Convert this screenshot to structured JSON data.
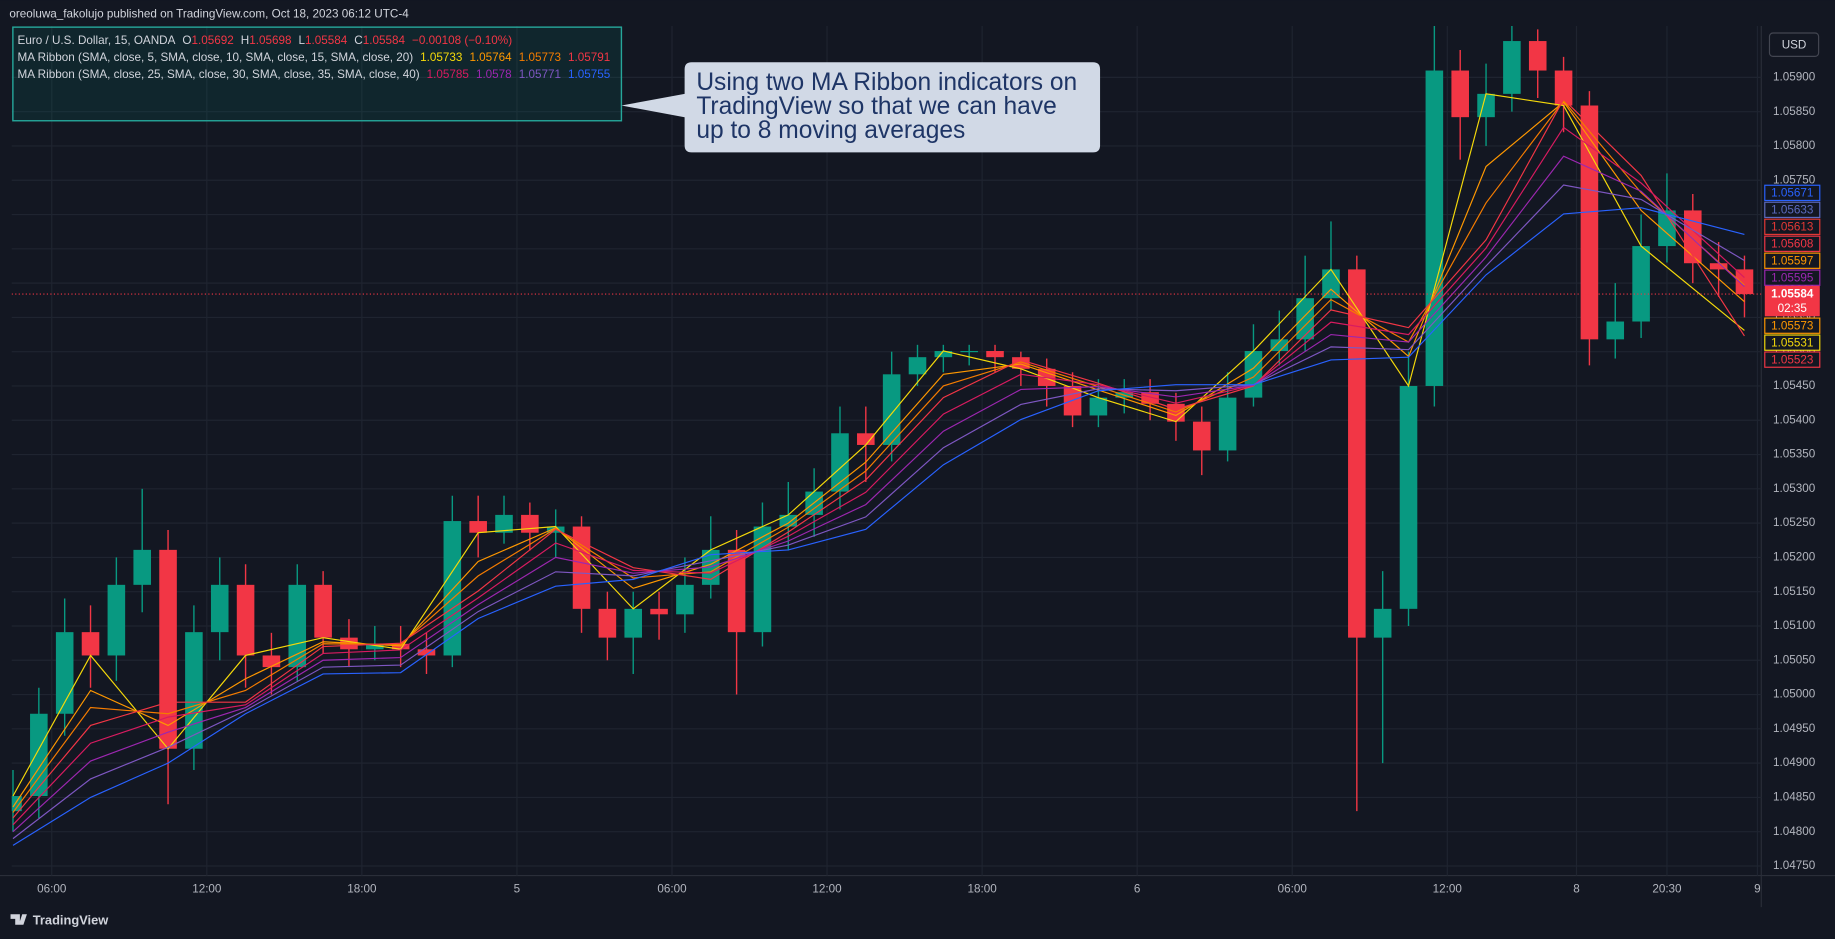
{
  "header": "oreoluwa_fakolujo published on TradingView.com, Oct 18, 2023 06:12 UTC-4",
  "footer": "TradingView",
  "chart_data": {
    "type": "candlestick",
    "symbol": "Euro / U.S. Dollar, 15, OANDA",
    "ohlc_legend": [
      {
        "label": "O",
        "value": 1.05692
      },
      {
        "label": "H",
        "value": 1.05698
      },
      {
        "label": "L",
        "value": 1.05584
      },
      {
        "label": "C",
        "value": 1.05584
      }
    ],
    "change": "−0.00108 (−0.10%)",
    "currency": "USD",
    "up_color": "#089981",
    "down_color": "#f23645",
    "x": [
      0,
      4,
      8,
      12,
      16,
      20,
      24,
      28,
      32,
      36,
      40,
      44,
      48,
      52,
      56,
      60,
      64,
      68,
      72,
      76,
      80,
      84,
      88,
      92,
      96,
      100,
      104,
      108,
      112,
      116,
      120,
      124,
      128,
      132,
      136,
      140,
      144,
      148,
      152,
      156,
      160,
      164,
      168,
      172,
      176,
      180,
      184,
      188,
      192,
      196,
      200,
      204,
      208,
      212,
      216,
      220,
      224,
      228,
      232,
      236,
      240,
      244,
      248,
      252,
      256,
      260,
      264,
      268
    ],
    "open": [
      1.0483,
      1.04852,
      1.04972,
      1.05091,
      1.05057,
      1.0516,
      1.05211,
      1.04921,
      1.05091,
      1.0516,
      1.05057,
      1.0504,
      1.0516,
      1.05083,
      1.05066,
      1.05074,
      1.05066,
      1.05057,
      1.05253,
      1.05236,
      1.05262,
      1.05236,
      1.05245,
      1.05125,
      1.05083,
      1.05125,
      1.05117,
      1.0516,
      1.05211,
      1.05091,
      1.05245,
      1.05262,
      1.05296,
      1.05381,
      1.05364,
      1.05467,
      1.05492,
      1.05501,
      1.05501,
      1.05492,
      1.05475,
      1.0545,
      1.05407,
      1.05433,
      1.05441,
      1.05424,
      1.05398,
      1.05356,
      1.05433,
      1.05501,
      1.05518,
      1.05578,
      1.0562,
      1.05083,
      1.05125,
      1.0545,
      1.0591,
      1.05842,
      1.05876,
      1.05953,
      1.0591,
      1.05859,
      1.05518,
      1.05544,
      1.05654,
      1.05706,
      1.05629,
      1.0562
    ],
    "high": [
      1.0489,
      1.0501,
      1.0514,
      1.0513,
      1.052,
      1.053,
      1.0524,
      1.0513,
      1.052,
      1.0519,
      1.0509,
      1.0519,
      1.0518,
      1.0511,
      1.051,
      1.051,
      1.0509,
      1.0529,
      1.0529,
      1.0529,
      1.0528,
      1.0527,
      1.0526,
      1.0515,
      1.0515,
      1.0515,
      1.052,
      1.0526,
      1.0524,
      1.0528,
      1.0531,
      1.0533,
      1.0542,
      1.0542,
      1.055,
      1.0551,
      1.0551,
      1.0551,
      1.0551,
      1.055,
      1.0549,
      1.0547,
      1.0546,
      1.0546,
      1.0546,
      1.0544,
      1.0542,
      1.0547,
      1.0554,
      1.0556,
      1.0564,
      1.0569,
      1.0564,
      1.0518,
      1.055,
      1.05975,
      1.0594,
      1.0592,
      1.05975,
      1.0597,
      1.0593,
      1.0588,
      1.056,
      1.057,
      1.0576,
      1.0573,
      1.0566,
      1.0564
    ],
    "low": [
      1.048,
      1.0482,
      1.0494,
      1.0501,
      1.0502,
      1.0512,
      1.0484,
      1.0489,
      1.0505,
      1.0501,
      1.05,
      1.0502,
      1.0506,
      1.0504,
      1.0505,
      1.0504,
      1.0503,
      1.0504,
      1.052,
      1.0522,
      1.0521,
      1.052,
      1.0509,
      1.0505,
      1.0503,
      1.0508,
      1.0509,
      1.0514,
      1.05,
      1.0507,
      1.0521,
      1.0523,
      1.0527,
      1.0531,
      1.0534,
      1.0545,
      1.0547,
      1.0548,
      1.0547,
      1.0545,
      1.0542,
      1.0539,
      1.0539,
      1.0541,
      1.054,
      1.0537,
      1.0532,
      1.0534,
      1.0542,
      1.0548,
      1.055,
      1.0556,
      1.0483,
      1.049,
      1.051,
      1.0542,
      1.0578,
      1.058,
      1.0585,
      1.0587,
      1.0582,
      1.0548,
      1.0549,
      1.0552,
      1.0563,
      1.056,
      1.0558,
      1.0555
    ],
    "close": [
      1.04852,
      1.04972,
      1.05091,
      1.05057,
      1.0516,
      1.05211,
      1.04921,
      1.05091,
      1.0516,
      1.05057,
      1.0504,
      1.0516,
      1.05083,
      1.05066,
      1.05074,
      1.05066,
      1.05057,
      1.05253,
      1.05236,
      1.05262,
      1.05236,
      1.05245,
      1.05125,
      1.05083,
      1.05125,
      1.05117,
      1.0516,
      1.05211,
      1.05091,
      1.05245,
      1.05262,
      1.05296,
      1.05381,
      1.05364,
      1.05467,
      1.05492,
      1.05501,
      1.05501,
      1.05492,
      1.05475,
      1.0545,
      1.05407,
      1.05433,
      1.05441,
      1.05424,
      1.05398,
      1.05356,
      1.05433,
      1.05501,
      1.05518,
      1.05578,
      1.0562,
      1.05083,
      1.05125,
      1.0545,
      1.0591,
      1.05842,
      1.05876,
      1.05953,
      1.0591,
      1.05859,
      1.05518,
      1.05544,
      1.05654,
      1.05706,
      1.05629,
      1.0562,
      1.05584
    ],
    "ma_x": [
      0,
      12,
      24,
      36,
      48,
      60,
      72,
      84,
      96,
      108,
      120,
      132,
      144,
      156,
      168,
      180,
      192,
      204,
      216,
      228,
      240,
      252,
      268
    ],
    "ribbons": [
      {
        "title": "MA Ribbon (SMA, close, 5, SMA, close, 10, SMA, close, 15, SMA, close, 20)",
        "series": [
          {
            "color": "#f5d90a",
            "legend_value": 1.05733,
            "values": [
              1.04852,
              1.05057,
              1.04921,
              1.05057,
              1.05083,
              1.05066,
              1.05236,
              1.05245,
              1.05125,
              1.05211,
              1.05262,
              1.05364,
              1.05501,
              1.05475,
              1.05433,
              1.05398,
              1.05501,
              1.0562,
              1.0545,
              1.05876,
              1.05859,
              1.05654,
              1.05531
            ]
          },
          {
            "color": "#ff9800",
            "legend_value": 1.05764,
            "values": [
              1.04836,
              1.05006,
              1.04955,
              1.05023,
              1.05077,
              1.05071,
              1.05194,
              1.05243,
              1.05155,
              1.0519,
              1.0525,
              1.05339,
              1.05467,
              1.05482,
              1.05444,
              1.05407,
              1.05476,
              1.05591,
              1.05493,
              1.0577,
              1.05864,
              1.05706,
              1.05573
            ]
          },
          {
            "color": "#f57c00",
            "legend_value": 1.05773,
            "values": [
              1.04828,
              1.04981,
              1.04972,
              1.05006,
              1.05074,
              1.05073,
              1.05173,
              1.05242,
              1.0517,
              1.05179,
              1.05244,
              1.05326,
              1.0545,
              1.05485,
              1.05449,
              1.05412,
              1.05463,
              1.05576,
              1.05514,
              1.05717,
              1.05866,
              1.05732,
              1.05597
            ]
          },
          {
            "color": "#f23645",
            "legend_value": 1.05791,
            "values": [
              1.0482,
              1.04955,
              1.04989,
              1.04989,
              1.0507,
              1.05075,
              1.05151,
              1.05241,
              1.05185,
              1.05168,
              1.05237,
              1.05313,
              1.05433,
              1.05488,
              1.05454,
              1.05416,
              1.0545,
              1.05561,
              1.05535,
              1.05663,
              1.05868,
              1.05757,
              1.05523
            ]
          }
        ]
      },
      {
        "title": "MA Ribbon (SMA, close, 25, SMA, close, 30, SMA, close, 35, SMA, close, 40)",
        "series": [
          {
            "color": "#d81b60",
            "legend_value": 1.05785,
            "values": [
              1.0481,
              1.04929,
              1.04967,
              1.04985,
              1.0506,
              1.05065,
              1.05141,
              1.05221,
              1.05181,
              1.05177,
              1.05231,
              1.05295,
              1.05409,
              1.05467,
              1.05452,
              1.05425,
              1.05451,
              1.05543,
              1.05525,
              1.05651,
              1.05827,
              1.05746,
              1.05608
            ]
          },
          {
            "color": "#9c27b0",
            "legend_value": 1.0578,
            "values": [
              1.048,
              1.04903,
              1.04945,
              1.04981,
              1.0505,
              1.05054,
              1.05131,
              1.052,
              1.05177,
              1.05186,
              1.05224,
              1.05277,
              1.05384,
              1.05445,
              1.05449,
              1.05434,
              1.05451,
              1.05525,
              1.05514,
              1.05638,
              1.05785,
              1.05734,
              1.05595
            ]
          },
          {
            "color": "#7e57c2",
            "legend_value": 1.05771,
            "values": [
              1.0479,
              1.04877,
              1.04923,
              1.04977,
              1.0504,
              1.05043,
              1.05121,
              1.05179,
              1.05173,
              1.05195,
              1.05218,
              1.05259,
              1.0536,
              1.05423,
              1.05446,
              1.05443,
              1.05452,
              1.05507,
              1.05503,
              1.05625,
              1.05743,
              1.05722,
              1.05633
            ]
          },
          {
            "color": "#2962ff",
            "legend_value": 1.05755,
            "values": [
              1.0478,
              1.0485,
              1.049,
              1.04972,
              1.0503,
              1.05032,
              1.05111,
              1.05158,
              1.05168,
              1.05204,
              1.05211,
              1.05241,
              1.05335,
              1.05401,
              1.05443,
              1.05452,
              1.05452,
              1.05488,
              1.05492,
              1.05612,
              1.05701,
              1.0571,
              1.05671
            ]
          }
        ]
      }
    ],
    "last_price": 1.05584,
    "countdown": "02:35",
    "axis_labels": [
      {
        "value": 1.05671,
        "color": "#2962ff"
      },
      {
        "value": 1.05633,
        "color": "#5c6bc0"
      },
      {
        "value": 1.05613,
        "color": "#e53935"
      },
      {
        "value": 1.05608,
        "color": "#f23645"
      },
      {
        "value": 1.05597,
        "color": "#ff9800"
      },
      {
        "value": 1.05595,
        "color": "#9c27b0"
      },
      {
        "value": 1.05573,
        "color": "#ff9800"
      },
      {
        "value": 1.05531,
        "color": "#f5d90a"
      },
      {
        "value": 1.05523,
        "color": "#f23645"
      }
    ],
    "annotation": [
      "Using two MA Ribbon indicators on",
      "TradingView so that we can have",
      "up to 8 moving averages"
    ],
    "xlim": [
      -0.2,
      270.6
    ],
    "ylim": [
      1.04736,
      1.05975
    ],
    "xticks": [
      {
        "value": 6,
        "label": "06:00"
      },
      {
        "value": 30,
        "label": "12:00"
      },
      {
        "value": 54,
        "label": "18:00"
      },
      {
        "value": 78,
        "label": "5"
      },
      {
        "value": 102,
        "label": "06:00"
      },
      {
        "value": 126,
        "label": "12:00"
      },
      {
        "value": 150,
        "label": "18:00"
      },
      {
        "value": 174,
        "label": "6"
      },
      {
        "value": 198,
        "label": "06:00"
      },
      {
        "value": 222,
        "label": "12:00"
      },
      {
        "value": 242,
        "label": "8"
      },
      {
        "value": 256,
        "label": "20:30"
      },
      {
        "value": 270,
        "label": "9"
      }
    ],
    "yticks": [
      {
        "value": 1.0475,
        "label": "1.04750"
      },
      {
        "value": 1.048,
        "label": "1.04800"
      },
      {
        "value": 1.0485,
        "label": "1.04850"
      },
      {
        "value": 1.049,
        "label": "1.04900"
      },
      {
        "value": 1.0495,
        "label": "1.04950"
      },
      {
        "value": 1.05,
        "label": "1.05000"
      },
      {
        "value": 1.0505,
        "label": "1.05050"
      },
      {
        "value": 1.051,
        "label": "1.05100"
      },
      {
        "value": 1.0515,
        "label": "1.05150"
      },
      {
        "value": 1.052,
        "label": "1.05200"
      },
      {
        "value": 1.0525,
        "label": "1.05250"
      },
      {
        "value": 1.053,
        "label": "1.05300"
      },
      {
        "value": 1.0535,
        "label": "1.05350"
      },
      {
        "value": 1.054,
        "label": "1.05400"
      },
      {
        "value": 1.0545,
        "label": "1.05450"
      },
      {
        "value": 1.055,
        "label": "1.05500"
      },
      {
        "value": 1.0555,
        "label": "1.05550"
      },
      {
        "value": 1.056,
        "label": "1.05600"
      },
      {
        "value": 1.0565,
        "label": "1.05650"
      },
      {
        "value": 1.057,
        "label": "1.05700"
      },
      {
        "value": 1.0575,
        "label": "1.05750"
      },
      {
        "value": 1.058,
        "label": "1.05800"
      },
      {
        "value": 1.0585,
        "label": "1.05850"
      },
      {
        "value": 1.059,
        "label": "1.05900"
      }
    ],
    "grid": true
  }
}
